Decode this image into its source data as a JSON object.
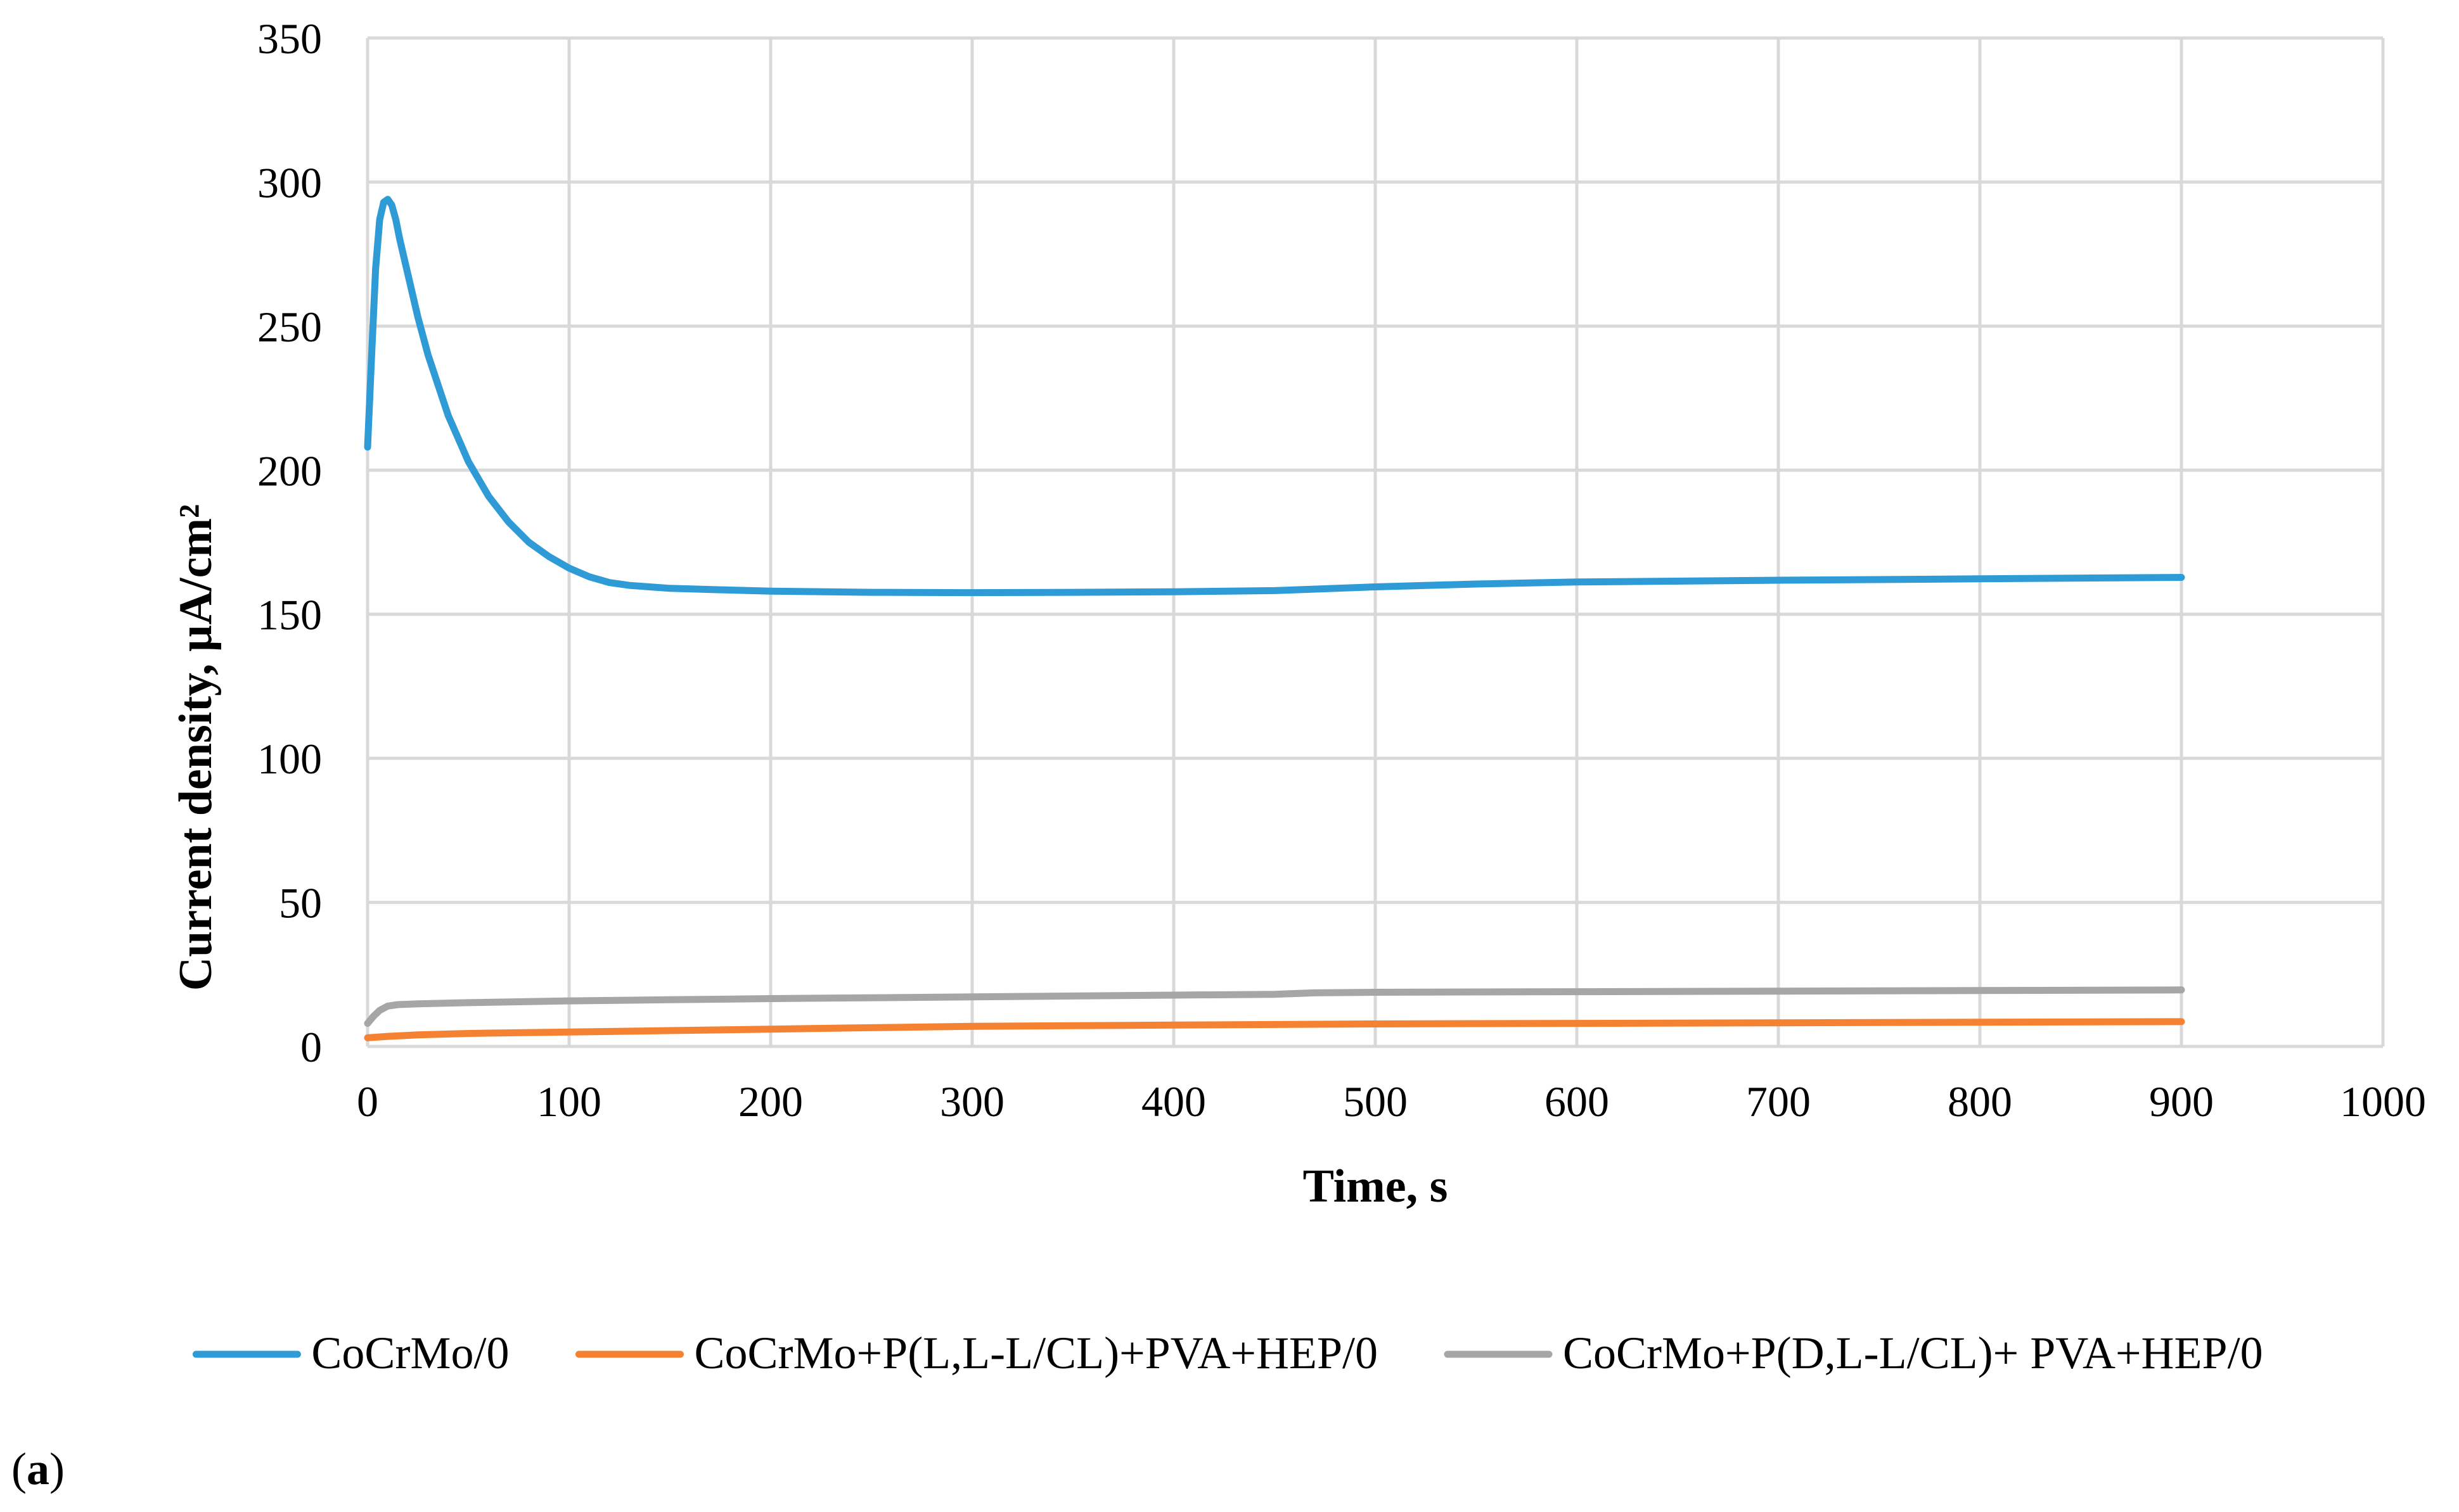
{
  "chart_data": {
    "type": "line",
    "title": "",
    "xlabel": "Time, s",
    "ylabel": "Current density, µA/cm²",
    "xlim": [
      0,
      1000
    ],
    "ylim": [
      0,
      350
    ],
    "x_ticks": [
      "0",
      "100",
      "200",
      "300",
      "400",
      "500",
      "600",
      "700",
      "800",
      "900",
      "1000"
    ],
    "y_ticks": [
      "0",
      "50",
      "100",
      "150",
      "200",
      "250",
      "300",
      "350"
    ],
    "grid": "on",
    "legend_position": "bottom",
    "panel_label": {
      "open": "(",
      "letter": "a",
      "close": ")"
    },
    "series": [
      {
        "name": "CoCrMo/0",
        "color": "#2e9bd6",
        "x": [
          0,
          2,
          4,
          6,
          8,
          10,
          12,
          14,
          16,
          20,
          25,
          30,
          40,
          50,
          60,
          70,
          80,
          90,
          100,
          110,
          120,
          130,
          140,
          150,
          175,
          200,
          250,
          300,
          350,
          400,
          450,
          500,
          550,
          600,
          700,
          800,
          900
        ],
        "y": [
          208,
          240,
          270,
          287,
          293,
          294,
          292,
          287,
          280,
          268,
          253,
          240,
          219,
          203,
          191,
          182,
          175,
          170,
          166,
          163,
          161,
          160,
          159.5,
          159,
          158.5,
          158,
          157.6,
          157.5,
          157.6,
          157.8,
          158.2,
          159.5,
          160.5,
          161.2,
          161.8,
          162.3,
          162.8
        ]
      },
      {
        "name": "CoCrMo+P(L,L-L/CL)+PVA+HEP/0",
        "color": "#f58232",
        "x": [
          0,
          10,
          25,
          50,
          100,
          150,
          200,
          250,
          300,
          400,
          500,
          600,
          700,
          800,
          900
        ],
        "y": [
          3,
          3.5,
          4,
          4.5,
          5,
          5.5,
          6,
          6.5,
          7,
          7.4,
          7.8,
          8,
          8.2,
          8.4,
          8.6
        ]
      },
      {
        "name": "CoCrMo+P(D,L-L/CL)+ PVA+HEP/0",
        "color": "#a6a6a6",
        "x": [
          0,
          3,
          6,
          10,
          15,
          25,
          50,
          100,
          150,
          200,
          300,
          400,
          450,
          470,
          500,
          600,
          700,
          800,
          900
        ],
        "y": [
          8,
          10.5,
          12.5,
          14,
          14.5,
          14.8,
          15.2,
          15.8,
          16.2,
          16.6,
          17.2,
          17.8,
          18.1,
          18.6,
          18.8,
          19.0,
          19.2,
          19.4,
          19.6
        ]
      }
    ]
  }
}
